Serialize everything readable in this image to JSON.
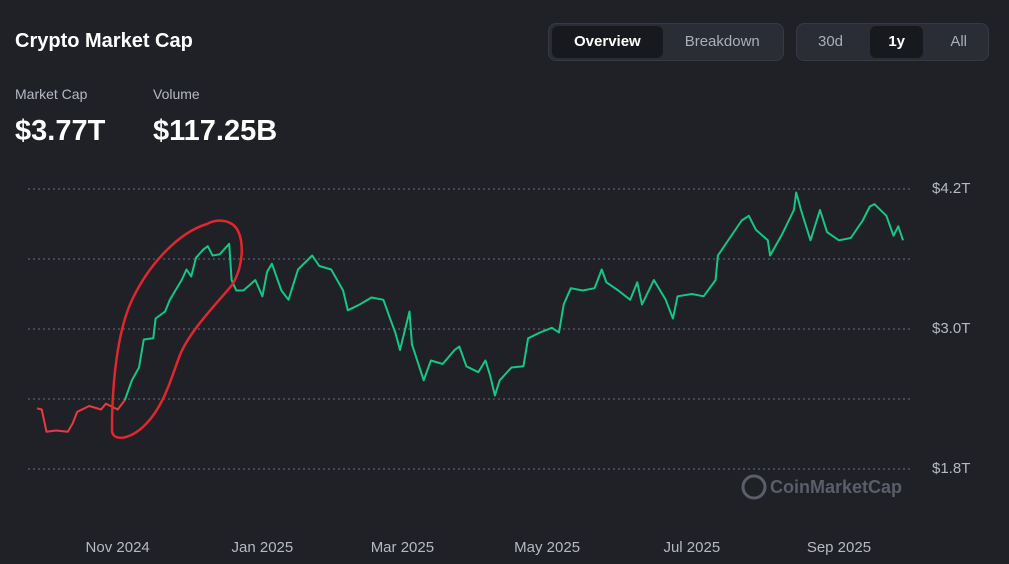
{
  "header": {
    "title": "Crypto Market Cap",
    "view_tabs": [
      {
        "label": "Overview",
        "active": true
      },
      {
        "label": "Breakdown",
        "active": false
      }
    ],
    "range_tabs": [
      {
        "label": "30d",
        "active": false
      },
      {
        "label": "1y",
        "active": true
      },
      {
        "label": "All",
        "active": false
      }
    ]
  },
  "stats": [
    {
      "label": "Market Cap",
      "value": "$3.77T"
    },
    {
      "label": "Volume",
      "value": "$117.25B"
    }
  ],
  "chart_data": {
    "type": "line",
    "watermark": "CoinMarketCap",
    "xlim": [
      0,
      365
    ],
    "xticks": [
      {
        "value": 34,
        "label": "Nov 2024"
      },
      {
        "value": 95,
        "label": "Jan 2025"
      },
      {
        "value": 154,
        "label": "Mar 2025"
      },
      {
        "value": 215,
        "label": "May 2025"
      },
      {
        "value": 276,
        "label": "Jul 2025"
      },
      {
        "value": 338,
        "label": "Sep 2025"
      }
    ],
    "ylim": [
      1.8,
      4.2
    ],
    "yticks": [
      {
        "value": 4.2,
        "label": "$4.2T"
      },
      {
        "value": 3.0,
        "label": "$3.0T"
      },
      {
        "value": 1.8,
        "label": "$1.8T"
      }
    ],
    "grid_lines": [
      4.2,
      3.6,
      3.0,
      2.4,
      1.8
    ],
    "series": [
      {
        "color": "#ea3943",
        "x": [
          0,
          2,
          4,
          8,
          13,
          15,
          17,
          22,
          27,
          29,
          34,
          37
        ],
        "values": [
          2.32,
          2.31,
          2.12,
          2.13,
          2.12,
          2.19,
          2.29,
          2.34,
          2.31,
          2.36,
          2.31,
          2.39
        ]
      },
      {
        "color": "#16c784",
        "x": [
          37,
          40,
          43,
          45,
          49,
          50,
          54,
          56,
          61,
          63,
          65,
          67,
          70,
          72,
          74,
          77,
          81,
          82,
          84,
          87,
          92,
          95,
          97,
          99,
          103,
          106,
          110,
          113,
          116,
          119,
          124,
          129,
          131,
          136,
          141,
          146,
          149,
          151,
          153,
          157,
          158,
          163,
          166,
          171,
          176,
          178,
          181,
          186,
          189,
          191,
          193,
          195,
          200,
          205,
          207,
          212,
          217,
          220,
          222,
          225,
          230,
          235,
          238,
          240,
          245,
          250,
          253,
          255,
          260,
          265,
          268,
          270,
          276,
          281,
          286,
          287,
          292,
          297,
          300,
          303,
          308,
          309,
          314,
          319,
          320,
          322,
          326,
          330,
          333,
          338,
          343,
          348,
          351,
          353,
          358,
          361,
          363,
          365
        ],
        "values": [
          2.39,
          2.56,
          2.67,
          2.91,
          2.92,
          3.09,
          3.15,
          3.25,
          3.42,
          3.51,
          3.45,
          3.61,
          3.68,
          3.71,
          3.63,
          3.64,
          3.73,
          3.42,
          3.33,
          3.33,
          3.42,
          3.28,
          3.49,
          3.56,
          3.33,
          3.25,
          3.51,
          3.57,
          3.63,
          3.54,
          3.51,
          3.33,
          3.16,
          3.21,
          3.27,
          3.25,
          3.08,
          2.97,
          2.82,
          3.15,
          2.87,
          2.56,
          2.73,
          2.7,
          2.82,
          2.85,
          2.68,
          2.63,
          2.73,
          2.6,
          2.43,
          2.56,
          2.67,
          2.68,
          2.92,
          2.97,
          3.01,
          2.97,
          3.21,
          3.35,
          3.33,
          3.35,
          3.51,
          3.4,
          3.33,
          3.25,
          3.4,
          3.21,
          3.42,
          3.25,
          3.09,
          3.28,
          3.3,
          3.28,
          3.42,
          3.63,
          3.78,
          3.93,
          3.97,
          3.85,
          3.76,
          3.63,
          3.81,
          4.02,
          4.17,
          4.02,
          3.76,
          4.02,
          3.83,
          3.76,
          3.78,
          3.93,
          4.05,
          4.07,
          3.97,
          3.8,
          3.88,
          3.76
        ]
      }
    ]
  }
}
